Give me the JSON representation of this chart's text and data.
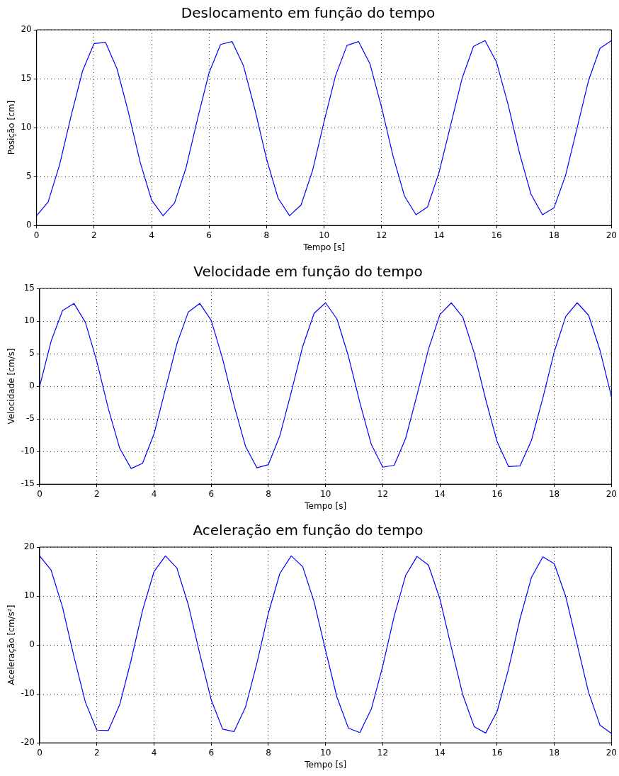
{
  "chart_data": [
    {
      "type": "line",
      "title": "Deslocamento em função do tempo",
      "xlabel": "Tempo [s]",
      "ylabel": "Posição [cm]",
      "color": "#0000ff",
      "grid": true,
      "marker": "none",
      "line_style": "solid",
      "xlim": [
        0,
        20
      ],
      "xticks": [
        0,
        2,
        4,
        6,
        8,
        10,
        12,
        14,
        16,
        18,
        20
      ],
      "ylim": [
        0,
        20
      ],
      "yticks": [
        0,
        5,
        10,
        15,
        20
      ],
      "x": [
        0,
        0.4,
        0.8,
        1.2,
        1.6,
        2,
        2.4,
        2.8,
        3.2,
        3.6,
        4,
        4.4,
        4.8,
        5.2,
        5.6,
        6,
        6.4,
        6.8,
        7.2,
        7.6,
        8,
        8.4,
        8.8,
        9.2,
        9.6,
        10,
        10.4,
        10.8,
        11.2,
        11.6,
        12,
        12.4,
        12.8,
        13.2,
        13.6,
        14,
        14.4,
        14.8,
        15.2,
        15.6,
        16,
        16.4,
        16.8,
        17.2,
        17.6,
        18,
        18.4,
        18.8,
        19.2,
        19.6,
        20
      ],
      "values": [
        1.0,
        2.4,
        6.2,
        11.2,
        15.8,
        18.6,
        18.7,
        16.0,
        11.5,
        6.5,
        2.6,
        1.0,
        2.3,
        5.9,
        10.9,
        15.6,
        18.5,
        18.8,
        16.3,
        11.8,
        6.8,
        2.8,
        1.0,
        2.1,
        5.6,
        10.6,
        15.3,
        18.4,
        18.8,
        16.5,
        12.1,
        7.1,
        3.0,
        1.1,
        1.9,
        5.4,
        10.2,
        15.0,
        18.3,
        18.9,
        16.7,
        12.4,
        7.4,
        3.2,
        1.1,
        1.8,
        5.1,
        9.9,
        14.8,
        18.1,
        18.9
      ]
    },
    {
      "type": "line",
      "title": "Velocidade em função do tempo",
      "xlabel": "Tempo [s]",
      "ylabel": "Velocidade [cm/s]",
      "color": "#0000ff",
      "grid": true,
      "marker": "none",
      "line_style": "solid",
      "xlim": [
        0,
        20
      ],
      "xticks": [
        0,
        2,
        4,
        6,
        8,
        10,
        12,
        14,
        16,
        18,
        20
      ],
      "ylim": [
        -15,
        15
      ],
      "yticks": [
        -15,
        -10,
        -5,
        0,
        5,
        10,
        15
      ],
      "x": [
        0,
        0.4,
        0.8,
        1.2,
        1.6,
        2,
        2.4,
        2.8,
        3.2,
        3.6,
        4,
        4.4,
        4.8,
        5.2,
        5.6,
        6,
        6.4,
        6.8,
        7.2,
        7.6,
        8,
        8.4,
        8.8,
        9.2,
        9.6,
        10,
        10.4,
        10.8,
        11.2,
        11.6,
        12,
        12.4,
        12.8,
        13.2,
        13.6,
        14,
        14.4,
        14.8,
        15.2,
        15.6,
        16,
        16.4,
        16.8,
        17.2,
        17.6,
        18,
        18.4,
        18.8,
        19.2,
        19.6,
        20
      ],
      "values": [
        0,
        6.9,
        11.6,
        12.7,
        9.8,
        3.8,
        -3.4,
        -9.5,
        -12.6,
        -11.8,
        -7.3,
        -0.4,
        6.5,
        11.4,
        12.7,
        10.1,
        4.2,
        -2.9,
        -9.2,
        -12.5,
        -12.0,
        -7.6,
        -0.9,
        6.1,
        11.2,
        12.8,
        10.3,
        4.6,
        -2.5,
        -8.9,
        -12.4,
        -12.1,
        -8.0,
        -1.3,
        5.7,
        11.0,
        12.8,
        10.6,
        5.1,
        -2.0,
        -8.5,
        -12.3,
        -12.2,
        -8.3,
        -1.8,
        5.3,
        10.7,
        12.8,
        10.9,
        5.5,
        -1.6
      ]
    },
    {
      "type": "line",
      "title": "Aceleração em função do tempo",
      "xlabel": "Tempo [s]",
      "ylabel": "Aceleração [cm/s²]",
      "color": "#0000ff",
      "grid": true,
      "marker": "none",
      "line_style": "solid",
      "xlim": [
        0,
        20
      ],
      "xticks": [
        0,
        2,
        4,
        6,
        8,
        10,
        12,
        14,
        16,
        18,
        20
      ],
      "ylim": [
        -20,
        20
      ],
      "yticks": [
        -20,
        -10,
        0,
        10,
        20
      ],
      "x": [
        0,
        0.4,
        0.8,
        1.2,
        1.6,
        2,
        2.4,
        2.8,
        3.2,
        3.6,
        4,
        4.4,
        4.8,
        5.2,
        5.6,
        6,
        6.4,
        6.8,
        7.2,
        7.6,
        8,
        8.4,
        8.8,
        9.2,
        9.6,
        10,
        10.4,
        10.8,
        11.2,
        11.6,
        12,
        12.4,
        12.8,
        13.2,
        13.6,
        14,
        14.4,
        14.8,
        15.2,
        15.6,
        16,
        16.4,
        16.8,
        17.2,
        17.6,
        18,
        18.4,
        18.8,
        19.2,
        19.6,
        20
      ],
      "values": [
        18.2,
        15.3,
        7.7,
        -2.4,
        -11.7,
        -17.4,
        -17.5,
        -12.2,
        -3.1,
        7.1,
        15.0,
        18.2,
        15.7,
        8.2,
        -1.8,
        -11.2,
        -17.2,
        -17.7,
        -12.7,
        -3.7,
        6.5,
        14.6,
        18.2,
        16.0,
        8.8,
        -1.1,
        -10.7,
        -17.0,
        -17.9,
        -13.1,
        -4.3,
        5.9,
        14.2,
        18.1,
        16.3,
        9.4,
        -0.5,
        -10.2,
        -16.7,
        -18.0,
        -13.6,
        -4.9,
        5.3,
        13.8,
        18.0,
        16.6,
        9.9,
        0.1,
        -9.7,
        -16.4,
        -18.1
      ]
    }
  ]
}
